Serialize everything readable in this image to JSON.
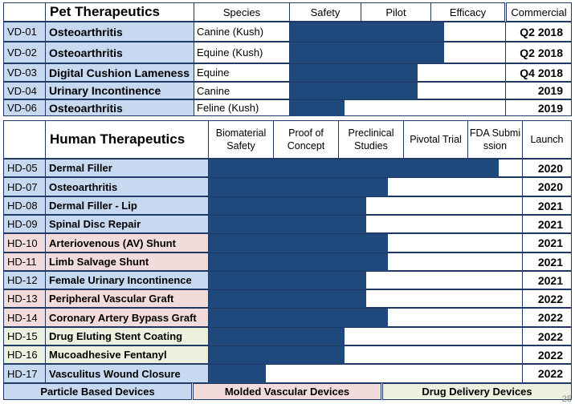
{
  "pet": {
    "title": "Pet Therapeutics",
    "headers": [
      "Species",
      "Safety",
      "Pilot",
      "Efficacy",
      "Commercial"
    ],
    "rows": [
      {
        "code": "VD-01",
        "name": "Osteoarthritis",
        "species": "Canine (Kush)",
        "progress": 0.71,
        "launch": "Q2 2018"
      },
      {
        "code": "VD-02",
        "name": "Osteoarthritis",
        "species": "Equine (Kush)",
        "progress": 0.71,
        "launch": "Q2 2018"
      },
      {
        "code": "VD-03",
        "name": "Digital Cushion Lameness",
        "species": "Equine",
        "progress": 0.59,
        "launch": "Q4 2018"
      },
      {
        "code": "VD-04",
        "name": "Urinary Incontinence",
        "species": "Canine",
        "progress": 0.59,
        "launch": "2019"
      },
      {
        "code": "VD-06",
        "name": "Osteoarthritis",
        "species": "Feline (Kush)",
        "progress": 0.25,
        "launch": "2019"
      }
    ]
  },
  "human": {
    "title": "Human Therapeutics",
    "headers": [
      "Biomaterial Safety",
      "Proof of Concept",
      "Preclinical Studies",
      "Pivotal Trial",
      "FDA Submission",
      "Launch"
    ],
    "rows": [
      {
        "code": "HD-05",
        "name": "Dermal Filler",
        "category": "particle",
        "progress": 0.92,
        "launch": "2020"
      },
      {
        "code": "HD-07",
        "name": "Osteoarthritis",
        "category": "particle",
        "progress": 0.57,
        "launch": "2020"
      },
      {
        "code": "HD-08",
        "name": "Dermal Filler - Lip",
        "category": "particle",
        "progress": 0.5,
        "launch": "2021"
      },
      {
        "code": "HD-09",
        "name": "Spinal Disc Repair",
        "category": "particle",
        "progress": 0.5,
        "launch": "2021"
      },
      {
        "code": "HD-10",
        "name": "Arteriovenous (AV) Shunt",
        "category": "vascular",
        "progress": 0.57,
        "launch": "2021"
      },
      {
        "code": "HD-11",
        "name": "Limb Salvage Shunt",
        "category": "vascular",
        "progress": 0.57,
        "launch": "2021"
      },
      {
        "code": "HD-12",
        "name": "Female Urinary Incontinence",
        "category": "particle",
        "progress": 0.5,
        "launch": "2021"
      },
      {
        "code": "HD-13",
        "name": "Peripheral Vascular Graft",
        "category": "vascular",
        "progress": 0.5,
        "launch": "2022"
      },
      {
        "code": "HD-14",
        "name": "Coronary Artery Bypass Graft",
        "category": "vascular",
        "progress": 0.57,
        "launch": "2022"
      },
      {
        "code": "HD-15",
        "name": "Drug Eluting Stent Coating",
        "category": "drug",
        "progress": 0.43,
        "launch": "2022"
      },
      {
        "code": "HD-16",
        "name": "Mucoadhesive Fentanyl",
        "category": "drug",
        "progress": 0.43,
        "launch": "2022"
      },
      {
        "code": "HD-17",
        "name": "Vasculitus Wound Closure",
        "category": "particle",
        "progress": 0.18,
        "launch": "2022"
      }
    ]
  },
  "legend": [
    {
      "label": "Particle Based Devices",
      "category": "particle"
    },
    {
      "label": "Molded Vascular Devices",
      "category": "vascular"
    },
    {
      "label": "Drug Delivery Devices",
      "category": "drug"
    }
  ],
  "colors": {
    "particle": "#c6d9f1",
    "vascular": "#f2dcdb",
    "drug": "#ebf1de",
    "bar": "#1f497d",
    "border": "#1f3864"
  },
  "page_number": "25"
}
